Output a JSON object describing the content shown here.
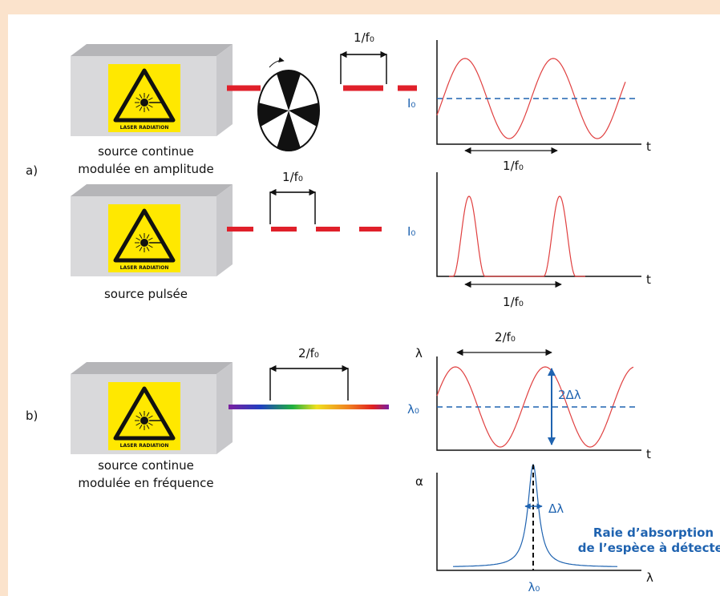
{
  "panels": {
    "a": "a)",
    "b": "b)"
  },
  "sources": [
    {
      "label_lines": [
        "source continue",
        "modulée en amplitude"
      ],
      "sign": "LASER RADIATION"
    },
    {
      "label_lines": [
        "source pulsée"
      ],
      "sign": "LASER RADIATION"
    },
    {
      "label_lines": [
        "source continue",
        "modulée en fréquence"
      ],
      "sign": "LASER RADIATION"
    }
  ],
  "beams": [
    {
      "period": "1/f₀"
    },
    {
      "period": "1/f₀"
    },
    {
      "period": "2/f₀"
    }
  ],
  "graphs": [
    {
      "level": "I₀",
      "x_axis": "t",
      "period": "1/f₀"
    },
    {
      "level": "I₀",
      "x_axis": "t",
      "period": "1/f₀"
    },
    {
      "y_axis": "λ",
      "level": "λ₀",
      "x_axis": "t",
      "period": "2/f₀",
      "amplitude": "2Δλ"
    },
    {
      "y_axis": "α",
      "x_axis": "λ",
      "center": "λ₀",
      "width": "Δλ",
      "caption_lines": [
        "Raie d’absorption",
        "de l’espèce à détecter"
      ]
    }
  ]
}
